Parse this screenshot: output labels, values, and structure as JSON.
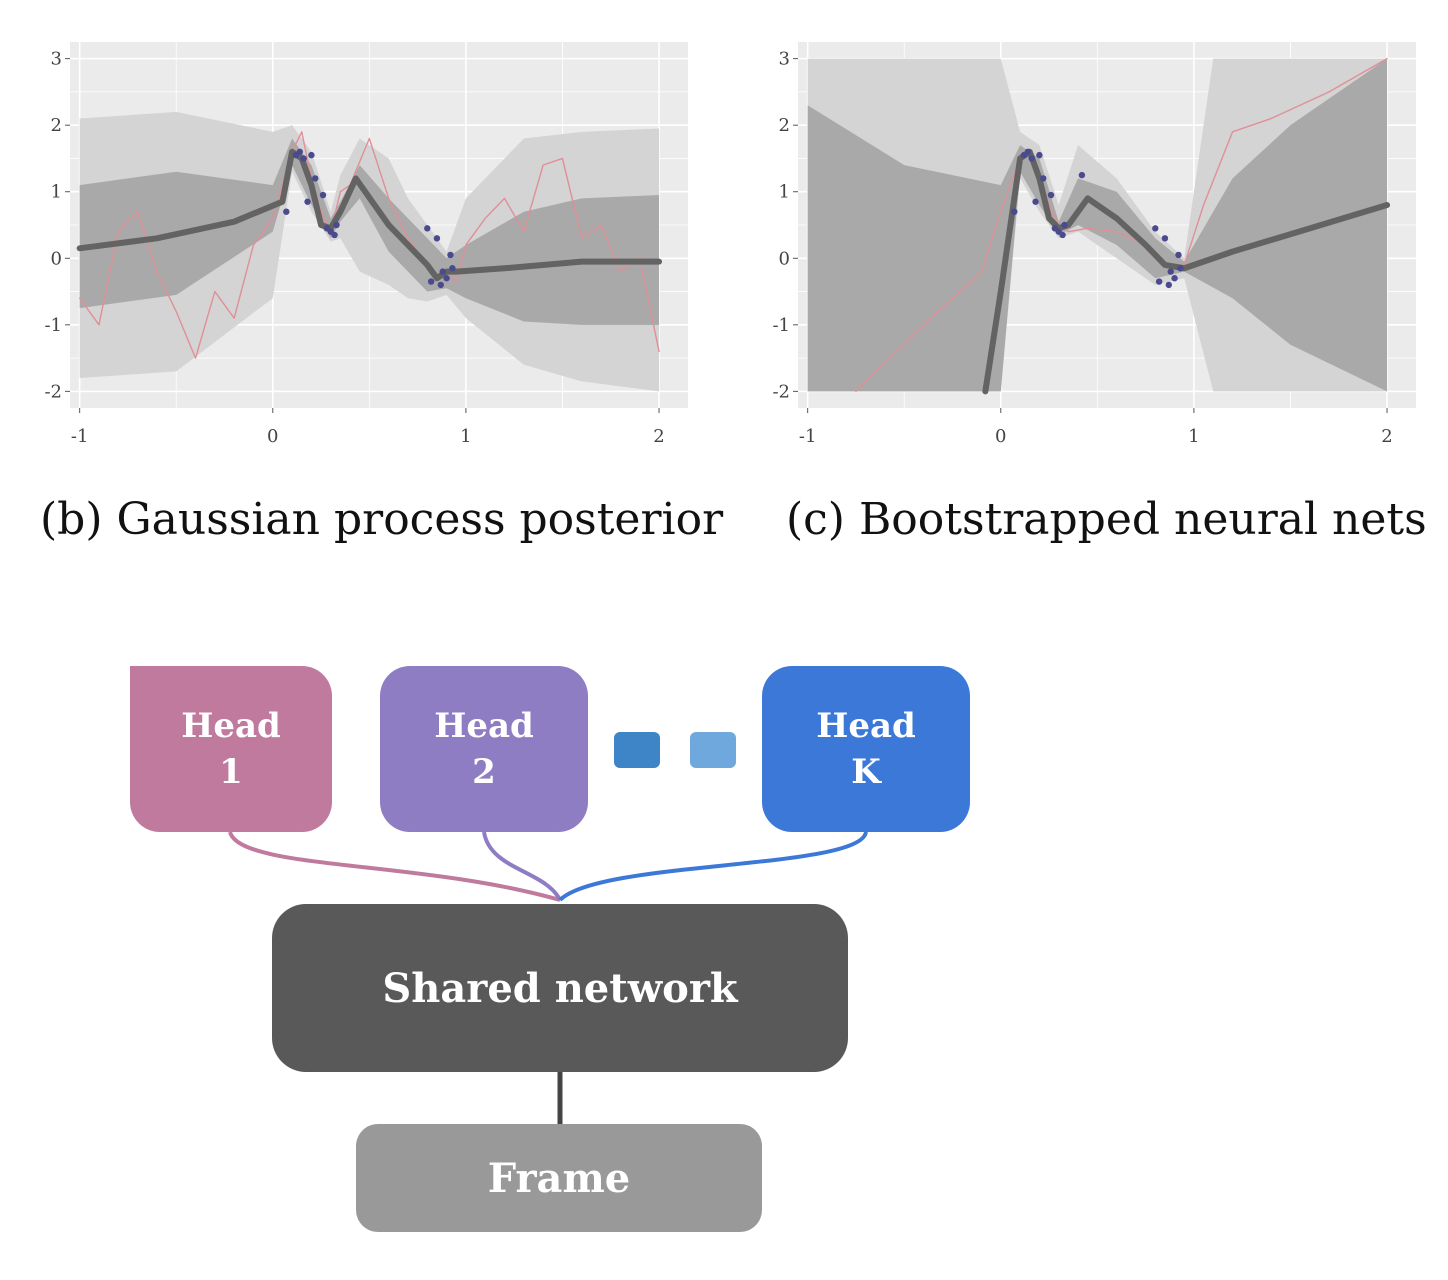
{
  "chart_data": [
    {
      "type": "line",
      "caption": "(b) Gaussian process posterior",
      "xlim": [
        -1.05,
        2.15
      ],
      "ylim": [
        -2.25,
        3.25
      ],
      "xticks": [
        "-1",
        "0",
        "1",
        "2"
      ],
      "yticks": [
        "3",
        "2",
        "1",
        "0",
        "-1",
        "-2"
      ],
      "grid": true,
      "series": [
        {
          "role": "mean",
          "x": [
            -1,
            -0.6,
            -0.2,
            0.05,
            0.1,
            0.15,
            0.2,
            0.25,
            0.3,
            0.35,
            0.43,
            0.6,
            0.8,
            0.85,
            0.9,
            0.95,
            1.2,
            1.6,
            2.0
          ],
          "y": [
            0.15,
            0.3,
            0.55,
            0.85,
            1.6,
            1.5,
            1.1,
            0.5,
            0.45,
            0.7,
            1.2,
            0.5,
            -0.1,
            -0.3,
            -0.2,
            -0.2,
            -0.15,
            -0.05,
            -0.05
          ]
        },
        {
          "role": "inner-band",
          "x": [
            -1,
            -0.5,
            0,
            0.1,
            0.2,
            0.3,
            0.35,
            0.45,
            0.6,
            0.8,
            0.9,
            1.0,
            1.3,
            1.6,
            2.0
          ],
          "lower": [
            -0.75,
            -0.55,
            0.4,
            1.4,
            0.8,
            0.3,
            0.55,
            0.9,
            0.1,
            -0.5,
            -0.45,
            -0.6,
            -0.95,
            -1.0,
            -1.0
          ],
          "upper": [
            1.1,
            1.3,
            1.1,
            1.8,
            1.4,
            0.6,
            0.85,
            1.4,
            0.9,
            0.3,
            0.0,
            0.2,
            0.7,
            0.9,
            0.95
          ]
        },
        {
          "role": "outer-band",
          "x": [
            -1,
            -0.5,
            0,
            0.1,
            0.2,
            0.3,
            0.35,
            0.45,
            0.6,
            0.7,
            0.8,
            0.9,
            1.0,
            1.3,
            1.6,
            2.0
          ],
          "lower": [
            -1.8,
            -1.7,
            -0.6,
            1.3,
            0.7,
            0.25,
            0.3,
            -0.2,
            -0.4,
            -0.6,
            -0.65,
            -0.55,
            -0.9,
            -1.6,
            -1.85,
            -2.0
          ],
          "upper": [
            2.1,
            2.2,
            1.9,
            2.0,
            1.6,
            0.7,
            1.25,
            1.8,
            1.5,
            0.9,
            0.5,
            0.1,
            0.9,
            1.8,
            1.9,
            1.95
          ]
        },
        {
          "role": "sample",
          "x": [
            -1,
            -0.9,
            -0.8,
            -0.7,
            -0.6,
            -0.5,
            -0.4,
            -0.3,
            -0.2,
            -0.1,
            0,
            0.1,
            0.15,
            0.2,
            0.25,
            0.3,
            0.35,
            0.4,
            0.5,
            0.6,
            0.7,
            0.8,
            0.85,
            0.9,
            0.95,
            1.0,
            1.1,
            1.2,
            1.3,
            1.4,
            1.5,
            1.6,
            1.7,
            1.8,
            1.9,
            2.0
          ],
          "y": [
            -0.6,
            -1.0,
            0.4,
            0.7,
            -0.2,
            -0.8,
            -1.5,
            -0.5,
            -0.9,
            0.2,
            0.6,
            1.6,
            1.9,
            1.2,
            0.7,
            0.4,
            1.0,
            1.1,
            1.8,
            0.9,
            0.3,
            -0.1,
            -0.3,
            -0.2,
            -0.35,
            0.2,
            0.6,
            0.9,
            0.4,
            1.4,
            1.5,
            0.3,
            0.5,
            -0.2,
            0.0,
            -1.4
          ]
        },
        {
          "role": "observations",
          "x": [
            0.07,
            0.12,
            0.14,
            0.16,
            0.18,
            0.2,
            0.22,
            0.26,
            0.28,
            0.3,
            0.32,
            0.33,
            0.8,
            0.82,
            0.85,
            0.87,
            0.88,
            0.9,
            0.92,
            0.93
          ],
          "y": [
            0.7,
            1.55,
            1.6,
            1.5,
            0.85,
            1.55,
            1.2,
            0.95,
            0.45,
            0.4,
            0.35,
            0.5,
            0.45,
            -0.35,
            0.3,
            -0.4,
            -0.2,
            -0.3,
            0.05,
            -0.15
          ]
        }
      ]
    },
    {
      "type": "line",
      "caption": "(c) Bootstrapped neural nets",
      "xlim": [
        -1.05,
        2.15
      ],
      "ylim": [
        -2.25,
        3.25
      ],
      "xticks": [
        "-1",
        "0",
        "1",
        "2"
      ],
      "yticks": [
        "3",
        "2",
        "1",
        "0",
        "-1",
        "-2"
      ],
      "grid": true,
      "series": [
        {
          "role": "mean",
          "x": [
            -0.08,
            0.0,
            0.1,
            0.15,
            0.2,
            0.25,
            0.3,
            0.35,
            0.45,
            0.6,
            0.75,
            0.85,
            0.95,
            1.2,
            1.6,
            2.0
          ],
          "y": [
            -2.0,
            -0.5,
            1.5,
            1.6,
            1.2,
            0.6,
            0.45,
            0.5,
            0.9,
            0.6,
            0.2,
            -0.1,
            -0.15,
            0.1,
            0.45,
            0.8
          ]
        },
        {
          "role": "inner-band",
          "x": [
            -1,
            -0.5,
            0.0,
            0.1,
            0.2,
            0.3,
            0.4,
            0.6,
            0.8,
            0.95,
            1.2,
            1.5,
            2.0
          ],
          "lower": [
            -2.0,
            -2.0,
            -2.0,
            1.3,
            0.8,
            0.35,
            0.5,
            0.2,
            -0.3,
            -0.2,
            -0.6,
            -1.3,
            -2.0
          ],
          "upper": [
            2.3,
            1.4,
            1.1,
            1.7,
            1.5,
            0.55,
            1.2,
            1.0,
            0.3,
            -0.05,
            1.2,
            2.0,
            3.0
          ]
        },
        {
          "role": "outer-band",
          "x": [
            -1,
            -0.5,
            -0.1,
            0.0,
            0.1,
            0.2,
            0.3,
            0.4,
            0.6,
            0.8,
            0.95,
            1.1,
            1.3,
            1.5,
            2.0
          ],
          "lower": [
            -2.0,
            -2.0,
            -2.0,
            -2.0,
            1.2,
            0.7,
            0.3,
            0.4,
            0.0,
            -0.4,
            -0.3,
            -2.0,
            -2.0,
            -2.0,
            -2.0
          ],
          "upper": [
            3.0,
            3.0,
            3.0,
            3.0,
            1.9,
            1.7,
            0.8,
            1.7,
            1.2,
            0.4,
            0.0,
            3.0,
            3.0,
            3.0,
            3.0
          ]
        },
        {
          "role": "sample",
          "x": [
            -0.75,
            -0.4,
            -0.1,
            0.0,
            0.1,
            0.15,
            0.2,
            0.25,
            0.3,
            0.35,
            0.45,
            0.6,
            0.75,
            0.85,
            0.95,
            1.05,
            1.2,
            1.4,
            1.7,
            2.0
          ],
          "y": [
            -2.0,
            -1.0,
            -0.2,
            0.7,
            1.5,
            1.6,
            1.3,
            0.8,
            0.5,
            0.4,
            0.45,
            0.4,
            0.2,
            -0.1,
            -0.1,
            0.8,
            1.9,
            2.1,
            2.5,
            3.0
          ]
        },
        {
          "role": "observations",
          "x": [
            0.07,
            0.12,
            0.14,
            0.16,
            0.18,
            0.2,
            0.22,
            0.26,
            0.28,
            0.3,
            0.32,
            0.33,
            0.42,
            0.8,
            0.82,
            0.85,
            0.87,
            0.88,
            0.9,
            0.92,
            0.93
          ],
          "y": [
            0.7,
            1.55,
            1.6,
            1.5,
            0.85,
            1.55,
            1.2,
            0.95,
            0.45,
            0.4,
            0.35,
            0.5,
            1.25,
            0.45,
            -0.35,
            0.3,
            -0.4,
            -0.2,
            -0.3,
            0.05,
            -0.15
          ]
        }
      ]
    }
  ],
  "colors": {
    "panel_bg": "#ebebeb",
    "grid": "#ffffff",
    "band_outer": "#d4d4d4",
    "band_inner": "#a9a9a9",
    "mean_line": "#636363",
    "sample_line": "#e08f97",
    "points": "#4a4a8f",
    "head1": "#c07a9e",
    "head2": "#8e7dc3",
    "headk": "#3c78d8",
    "dot1": "#3d85c6",
    "dot2": "#6fa8dc",
    "shared": "#595959",
    "frame": "#999999"
  },
  "diagram": {
    "head1": {
      "line1": "Head",
      "line2": "1"
    },
    "head2": {
      "line1": "Head",
      "line2": "2"
    },
    "headk": {
      "line1": "Head",
      "line2": "K"
    },
    "shared": "Shared network",
    "frame": "Frame"
  }
}
